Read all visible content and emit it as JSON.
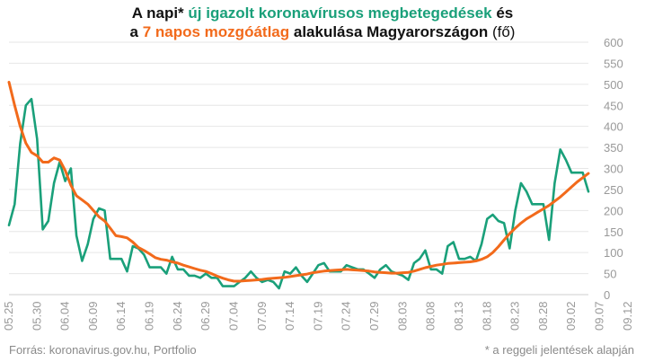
{
  "title": {
    "line1_part1": "A napi* ",
    "line1_green": "új igazolt koronavírusos megbetegedések",
    "line1_part2": " és",
    "line2_part1": "a ",
    "line2_orange": "7 napos mozgóátlag",
    "line2_part2": " alakulása Magyarországon ",
    "line2_normal": "(fő)"
  },
  "footer": {
    "source": "Forrás: koronavirus.gov.hu, Portfolio",
    "note": "* a reggeli jelentések alapján"
  },
  "chart_data": {
    "type": "line",
    "title": "A napi* új igazolt koronavírusos megbetegedések és a 7 napos mozgóátlag alakulása Magyarországon (fő)",
    "ylim": [
      0,
      600
    ],
    "yticks": [
      0,
      50,
      100,
      150,
      200,
      250,
      300,
      350,
      400,
      450,
      500,
      550,
      600
    ],
    "xtick_labels": [
      "05.25",
      "05.30",
      "06.04",
      "06.09",
      "06.14",
      "06.19",
      "06.24",
      "06.29",
      "07.04",
      "07.09",
      "07.14",
      "07.19",
      "07.24",
      "07.29",
      "08.03",
      "08.08",
      "08.13",
      "08.18",
      "08.23",
      "08.28",
      "09.02",
      "09.07",
      "09.12"
    ],
    "series": [
      {
        "name": "új igazolt koronavírusos megbetegedések",
        "color": "#1aa07a",
        "values": [
          165,
          215,
          360,
          450,
          465,
          370,
          155,
          175,
          265,
          315,
          270,
          300,
          140,
          80,
          120,
          180,
          205,
          200,
          85,
          85,
          85,
          55,
          115,
          110,
          95,
          65,
          65,
          65,
          50,
          90,
          60,
          60,
          45,
          45,
          40,
          50,
          40,
          40,
          20,
          20,
          20,
          30,
          40,
          55,
          40,
          30,
          35,
          30,
          15,
          55,
          50,
          65,
          45,
          30,
          50,
          70,
          75,
          55,
          55,
          55,
          70,
          65,
          60,
          60,
          50,
          40,
          60,
          70,
          55,
          50,
          45,
          35,
          75,
          85,
          105,
          60,
          60,
          50,
          115,
          125,
          85,
          85,
          90,
          80,
          120,
          180,
          190,
          175,
          170,
          110,
          200,
          265,
          245,
          215,
          215,
          215,
          130,
          265,
          345,
          320,
          290,
          290,
          290,
          245
        ]
      },
      {
        "name": "7 napos mozgóátlag",
        "color": "#f26a1b",
        "values": [
          505,
          450,
          400,
          360,
          338,
          330,
          315,
          315,
          325,
          320,
          295,
          260,
          235,
          225,
          215,
          200,
          185,
          175,
          158,
          140,
          138,
          135,
          125,
          112,
          105,
          97,
          88,
          84,
          82,
          78,
          75,
          70,
          66,
          62,
          58,
          55,
          50,
          44,
          39,
          35,
          32,
          32,
          33,
          34,
          35,
          36,
          38,
          39,
          40,
          41,
          43,
          45,
          47,
          49,
          52,
          54,
          56,
          57,
          58,
          59,
          60,
          59,
          58,
          57,
          56,
          54,
          53,
          52,
          51,
          51,
          52,
          53,
          56,
          60,
          64,
          67,
          70,
          72,
          74,
          75,
          76,
          77,
          78,
          80,
          84,
          90,
          100,
          114,
          130,
          145,
          158,
          170,
          180,
          188,
          196,
          204,
          212,
          222,
          232,
          244,
          256,
          268,
          278,
          288
        ]
      }
    ]
  }
}
